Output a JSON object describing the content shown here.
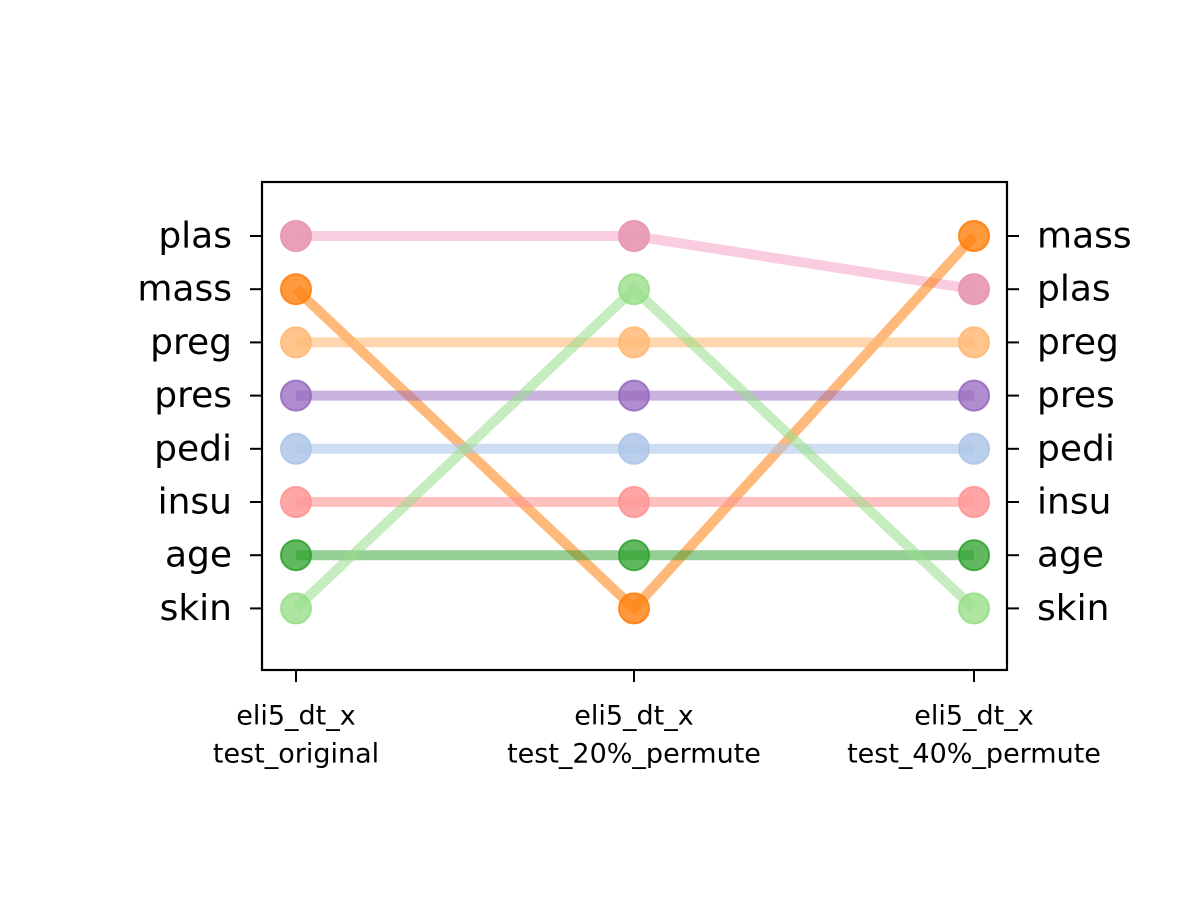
{
  "chart_data": {
    "type": "line",
    "title": "",
    "xlabel": "",
    "ylabel": "",
    "categories": [
      [
        "eli5_dt_x",
        "test_original"
      ],
      [
        "eli5_dt_x",
        "test_20%_permute"
      ],
      [
        "eli5_dt_x",
        "test_40%_permute"
      ]
    ],
    "ranks_description": "rank 1 = top",
    "left_tick_labels": [
      "plas",
      "mass",
      "preg",
      "pres",
      "pedi",
      "insu",
      "age",
      "skin"
    ],
    "right_tick_labels": [
      "mass",
      "plas",
      "preg",
      "pres",
      "pedi",
      "insu",
      "age",
      "skin"
    ],
    "grid": false,
    "series": [
      {
        "name": "plas",
        "ranks": [
          1,
          1,
          2
        ],
        "color": "#f7b6d2",
        "marker_color": "#e89ab3",
        "alpha": 0.7
      },
      {
        "name": "mass",
        "ranks": [
          2,
          8,
          1
        ],
        "color": "#ff7f0e",
        "marker_color": "#ff7f0e",
        "alpha": 0.55
      },
      {
        "name": "preg",
        "ranks": [
          3,
          3,
          3
        ],
        "color": "#ffbb78",
        "marker_color": "#ffbb78",
        "alpha": 0.6
      },
      {
        "name": "pres",
        "ranks": [
          4,
          4,
          4
        ],
        "color": "#9467bd",
        "marker_color": "#9467bd",
        "alpha": 0.5
      },
      {
        "name": "pedi",
        "ranks": [
          5,
          5,
          5
        ],
        "color": "#aec7e8",
        "marker_color": "#aec7e8",
        "alpha": 0.6
      },
      {
        "name": "insu",
        "ranks": [
          6,
          6,
          6
        ],
        "color": "#ff9896",
        "marker_color": "#ff9896",
        "alpha": 0.6
      },
      {
        "name": "age",
        "ranks": [
          7,
          7,
          7
        ],
        "color": "#2ca02c",
        "marker_color": "#2ca02c",
        "alpha": 0.5
      },
      {
        "name": "skin",
        "ranks": [
          8,
          2,
          8
        ],
        "color": "#98df8a",
        "marker_color": "#98df8a",
        "alpha": 0.55
      }
    ]
  }
}
